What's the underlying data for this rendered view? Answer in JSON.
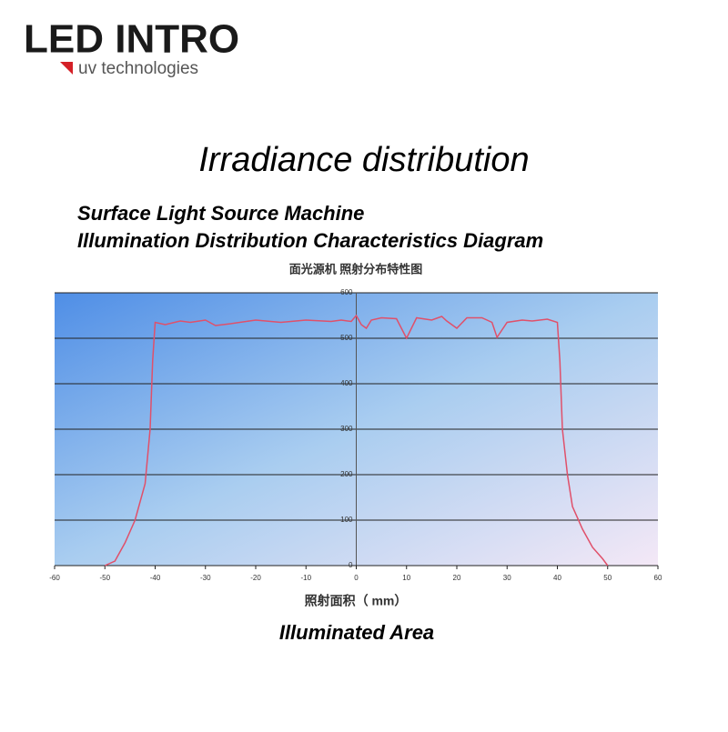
{
  "header": {
    "logo": "LED INTRO",
    "tagline": "uv technologies"
  },
  "title": "Irradiance distribution",
  "subtitle": [
    "Surface Light Source Machine",
    "Illumination Distribution Characteristics Diagram"
  ],
  "chart_data": {
    "type": "line",
    "title": "面光源机 照射分布特性图",
    "x_label": "照射面积（ mm）",
    "x_label_en": "Illuminated Area",
    "color": "#e0506a",
    "grid": true,
    "x": [
      -50,
      -48,
      -46,
      -44,
      -42,
      -41,
      -40.5,
      -40,
      -38,
      -35,
      -33,
      -30,
      -28,
      -25,
      -20,
      -15,
      -10,
      -5,
      -3,
      -1,
      0,
      1,
      2,
      3,
      5,
      8,
      10,
      12,
      15,
      17,
      18,
      20,
      22,
      25,
      27,
      28,
      30,
      33,
      35,
      38,
      40,
      40.5,
      41,
      42,
      43,
      45,
      47,
      49,
      50
    ],
    "values": [
      0,
      10,
      50,
      100,
      180,
      300,
      450,
      535,
      530,
      538,
      535,
      540,
      528,
      532,
      540,
      535,
      540,
      537,
      540,
      537,
      550,
      530,
      522,
      540,
      545,
      543,
      500,
      545,
      540,
      548,
      538,
      522,
      545,
      545,
      535,
      502,
      535,
      540,
      538,
      542,
      535,
      450,
      300,
      200,
      130,
      80,
      40,
      15,
      0
    ],
    "xlim": [
      -60,
      60
    ],
    "xticks": [
      -60,
      -50,
      -40,
      -30,
      -20,
      -10,
      0,
      10,
      20,
      30,
      40,
      50,
      60
    ],
    "ylim": [
      0,
      600
    ],
    "yticks": [
      0,
      100,
      200,
      300,
      400,
      500,
      600
    ]
  }
}
